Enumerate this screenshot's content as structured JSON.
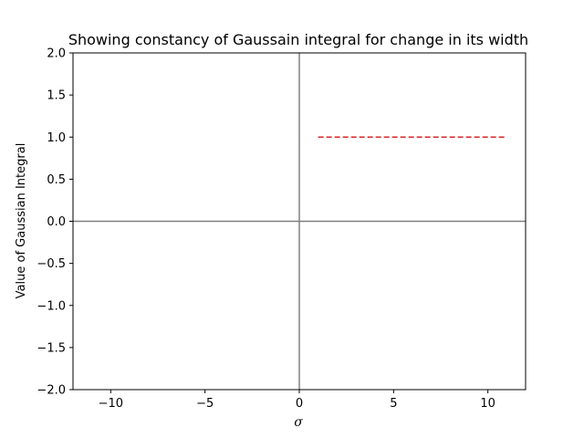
{
  "chart_data": {
    "type": "line",
    "title": "Showing constancy of Gaussain integral for change in its width",
    "xlabel": "σ",
    "ylabel": "Value of Gaussian Integral",
    "xlim": [
      -12,
      12
    ],
    "ylim": [
      -2,
      2
    ],
    "xticks": [
      -10,
      -5,
      0,
      5,
      10
    ],
    "xtick_labels": [
      "−10",
      "−5",
      "0",
      "5",
      "10"
    ],
    "yticks": [
      -2.0,
      -1.5,
      -1.0,
      -0.5,
      0.0,
      0.5,
      1.0,
      1.5,
      2.0
    ],
    "ytick_labels": [
      "−2.0",
      "−1.5",
      "−1.0",
      "−0.5",
      "0.0",
      "0.5",
      "1.0",
      "1.5",
      "2.0"
    ],
    "reference_lines": {
      "x_zero": {
        "value": 0,
        "color": "#808080"
      },
      "y_zero": {
        "value": 0,
        "color": "#808080"
      }
    },
    "series": [
      {
        "x": [
          1,
          2,
          3,
          4,
          5,
          6,
          7,
          8,
          9,
          10,
          11
        ],
        "values": [
          1,
          1,
          1,
          1,
          1,
          1,
          1,
          1,
          1,
          1,
          1
        ],
        "color": "#d62728",
        "style": "dashed"
      }
    ],
    "grid": false,
    "legend": "none"
  }
}
